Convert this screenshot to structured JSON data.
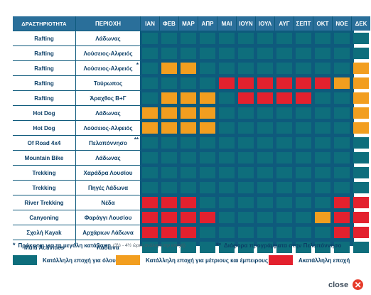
{
  "headers": {
    "activity": "ΔΡΑΣΤΗΡΙΟΤΗΤΑ",
    "region": "ΠΕΡΙΟΧΗ",
    "months": [
      "ΙΑΝ",
      "ΦΕΒ",
      "ΜΑΡ",
      "ΑΠΡ",
      "ΜΑΙ",
      "ΙΟΥΝ",
      "ΙΟΥΛ",
      "ΑΥΓ",
      "ΣΕΠΤ",
      "ΟΚΤ",
      "ΝΟΕ",
      "ΔΕΚ"
    ]
  },
  "colors": {
    "all": "#0e6e7c",
    "experienced": "#f29e1f",
    "unsuitable": "#e3212e"
  },
  "rows": [
    {
      "activity": "Rafting",
      "region": "Λάδωνας",
      "mark": "",
      "months": [
        "all",
        "all",
        "all",
        "all",
        "all",
        "all",
        "all",
        "all",
        "all",
        "all",
        "all",
        "all"
      ]
    },
    {
      "activity": "Rafting",
      "region": "Λούσειος-Αλφειός",
      "mark": "",
      "months": [
        "all",
        "all",
        "all",
        "all",
        "all",
        "all",
        "all",
        "all",
        "all",
        "all",
        "all",
        "all"
      ]
    },
    {
      "activity": "Rafting",
      "region": "Λούσειος-Αλφειός",
      "mark": "*",
      "months": [
        "all",
        "experienced",
        "experienced",
        "all",
        "all",
        "all",
        "all",
        "all",
        "all",
        "all",
        "all",
        "experienced"
      ]
    },
    {
      "activity": "Rafting",
      "region": "Ταύρωπος",
      "mark": "",
      "months": [
        "all",
        "all",
        "all",
        "all",
        "unsuitable",
        "unsuitable",
        "unsuitable",
        "unsuitable",
        "unsuitable",
        "unsuitable",
        "experienced",
        "experienced"
      ]
    },
    {
      "activity": "Rafting",
      "region": "Άραχθος Β+Γ",
      "mark": "",
      "months": [
        "all",
        "experienced",
        "experienced",
        "experienced",
        "all",
        "unsuitable",
        "unsuitable",
        "unsuitable",
        "unsuitable",
        "all",
        "all",
        "experienced"
      ]
    },
    {
      "activity": "Hot Dog",
      "region": "Λάδωνας",
      "mark": "",
      "months": [
        "experienced",
        "experienced",
        "experienced",
        "experienced",
        "all",
        "all",
        "all",
        "all",
        "all",
        "all",
        "all",
        "experienced"
      ]
    },
    {
      "activity": "Hot Dog",
      "region": "Λούσειος-Αλφειός",
      "mark": "",
      "months": [
        "experienced",
        "experienced",
        "experienced",
        "experienced",
        "all",
        "all",
        "all",
        "all",
        "all",
        "all",
        "all",
        "experienced"
      ]
    },
    {
      "activity": "Of Road 4x4",
      "region": "Πελοπόννησο",
      "mark": "**",
      "months": [
        "all",
        "all",
        "all",
        "all",
        "all",
        "all",
        "all",
        "all",
        "all",
        "all",
        "all",
        "all"
      ]
    },
    {
      "activity": "Mountain Bike",
      "region": "Λάδωνας",
      "mark": "",
      "months": [
        "all",
        "all",
        "all",
        "all",
        "all",
        "all",
        "all",
        "all",
        "all",
        "all",
        "all",
        "all"
      ]
    },
    {
      "activity": "Trekking",
      "region": "Χαράδρα Λουσίου",
      "mark": "",
      "months": [
        "all",
        "all",
        "all",
        "all",
        "all",
        "all",
        "all",
        "all",
        "all",
        "all",
        "all",
        "all"
      ]
    },
    {
      "activity": "Trekking",
      "region": "Πηγές Λάδωνα",
      "mark": "",
      "months": [
        "all",
        "all",
        "all",
        "all",
        "all",
        "all",
        "all",
        "all",
        "all",
        "all",
        "all",
        "all"
      ]
    },
    {
      "activity": "River Trekking",
      "region": "Νέδα",
      "mark": "",
      "months": [
        "unsuitable",
        "unsuitable",
        "unsuitable",
        "all",
        "all",
        "all",
        "all",
        "all",
        "all",
        "all",
        "unsuitable",
        "unsuitable"
      ]
    },
    {
      "activity": "Canyoning",
      "region": "Φαράγγι Λουσίου",
      "mark": "",
      "months": [
        "unsuitable",
        "unsuitable",
        "unsuitable",
        "unsuitable",
        "all",
        "all",
        "all",
        "all",
        "all",
        "experienced",
        "unsuitable",
        "unsuitable"
      ]
    },
    {
      "activity": "Σχολή Kayak",
      "region": "Αρχάριων Λάδωνα",
      "mark": "",
      "months": [
        "unsuitable",
        "unsuitable",
        "unsuitable",
        "all",
        "all",
        "all",
        "all",
        "all",
        "all",
        "all",
        "unsuitable",
        "unsuitable"
      ]
    },
    {
      "activity": "Multi Activities",
      "region": "Λάδωνα",
      "mark": "",
      "months": [
        "all",
        "all",
        "all",
        "all",
        "all",
        "all",
        "all",
        "all",
        "all",
        "all",
        "all",
        "all"
      ]
    }
  ],
  "notes": {
    "star1_mark": "*",
    "star1_text": "Πρόκειται για τη μεγάλη κατάβαση",
    "star1_small": "(3½ - 4½ ώρες ανάλογα την εποχή)",
    "star2_mark": "**",
    "star2_text": "Διάφορα προγράμματα στην Πελοπόννησο"
  },
  "legend": {
    "all": "Κατάλληλη εποχή για όλους",
    "experienced": "Κατάλληλη εποχή για μέτριους και έμπειρους",
    "unsuitable": "Ακατάλληλη εποχή"
  },
  "close_label": "close"
}
